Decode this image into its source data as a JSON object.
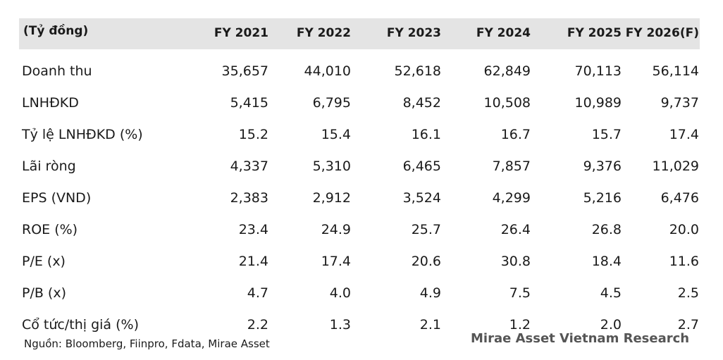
{
  "table": {
    "header": {
      "label": "(Tỷ đồng)",
      "years": [
        "FY 2021",
        "FY 2022",
        "FY 2023",
        "FY 2024",
        "FY 2025",
        "FY 2026(F)"
      ]
    },
    "rows": [
      {
        "label": "Doanh thu",
        "values": [
          "35,657",
          "44,010",
          "52,618",
          "62,849",
          "70,113",
          "56,114"
        ]
      },
      {
        "label": "LNHĐKD",
        "values": [
          "5,415",
          "6,795",
          "8,452",
          "10,508",
          "10,989",
          "9,737"
        ]
      },
      {
        "label": "Tỷ lệ LNHĐKD (%)",
        "values": [
          "15.2",
          "15.4",
          "16.1",
          "16.7",
          "15.7",
          "17.4"
        ]
      },
      {
        "label": "Lãi ròng",
        "values": [
          "4,337",
          "5,310",
          "6,465",
          "7,857",
          "9,376",
          "11,029"
        ]
      },
      {
        "label": "EPS (VND)",
        "values": [
          "2,383",
          "2,912",
          "3,524",
          "4,299",
          "5,216",
          "6,476"
        ]
      },
      {
        "label": "ROE (%)",
        "values": [
          "23.4",
          "24.9",
          "25.7",
          "26.4",
          "26.8",
          "20.0"
        ]
      },
      {
        "label": "P/E (x)",
        "values": [
          "21.4",
          "17.4",
          "20.6",
          "30.8",
          "18.4",
          "11.6"
        ]
      },
      {
        "label": "P/B (x)",
        "values": [
          "4.7",
          "4.0",
          "4.9",
          "7.5",
          "4.5",
          "2.5"
        ]
      },
      {
        "label": "Cổ tức/thị giá (%)",
        "values": [
          "2.2",
          "1.3",
          "2.1",
          "1.2",
          "2.0",
          "2.7"
        ]
      }
    ]
  },
  "footer": {
    "source": "Nguồn: Bloomberg, Fiinpro, Fdata, Mirae Asset",
    "brand": "Mirae Asset Vietnam Research"
  }
}
